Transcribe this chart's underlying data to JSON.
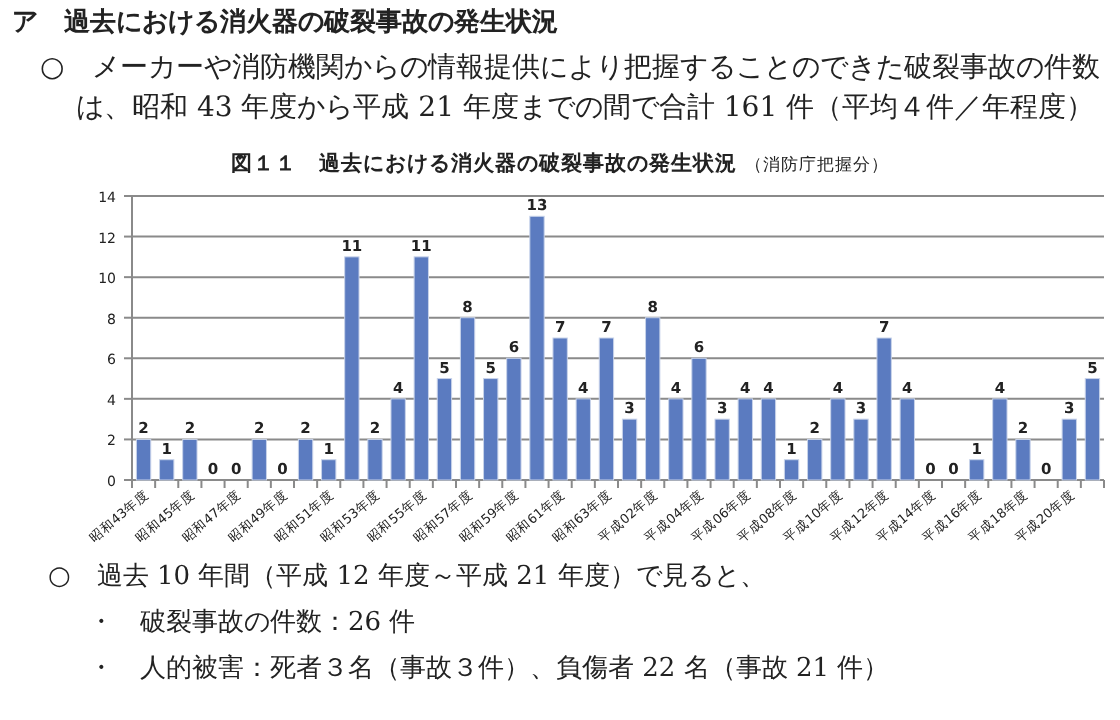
{
  "chart_data": {
    "type": "bar",
    "title": "図１１　過去における消火器の破裂事故の発生状況",
    "subtitle": "（消防庁把握分）",
    "annotations": [
      "ア　過去における消火器の破裂事故の発生状況",
      "○　メーカーや消防機関からの情報提供により把握することのできた破裂事故の件数は、昭和 43 年度から平成 21 年度までの間で合計 161 件（平均４件／年程度）",
      "○　過去 10 年間（平成 12 年度～平成 21 年度）で見ると、",
      "・　破裂事故の件数：26 件",
      "・　人的被害：死者３名（事故３件）、負傷者 22 名（事故 21 件）"
    ],
    "categories": [
      "昭和43年度",
      null,
      "昭和45年度",
      null,
      "昭和47年度",
      null,
      "昭和49年度",
      null,
      "昭和51年度",
      null,
      "昭和53年度",
      null,
      "昭和55年度",
      null,
      "昭和57年度",
      null,
      "昭和59年度",
      null,
      "昭和61年度",
      null,
      "昭和63年度",
      null,
      "平成02年度",
      null,
      "平成04年度",
      null,
      "平成06年度",
      null,
      "平成08年度",
      null,
      "平成10年度",
      null,
      "平成12年度",
      null,
      "平成14年度",
      null,
      "平成16年度",
      null,
      "平成18年度",
      null,
      "平成20年度",
      null
    ],
    "values": [
      2,
      1,
      2,
      0,
      0,
      2,
      0,
      2,
      1,
      11,
      2,
      4,
      11,
      5,
      8,
      5,
      6,
      13,
      7,
      4,
      7,
      3,
      8,
      4,
      6,
      3,
      4,
      4,
      1,
      2,
      4,
      3,
      7,
      4,
      0,
      0,
      1,
      4,
      2,
      0,
      3,
      5
    ],
    "color": "#5b7bc0",
    "ylim": [
      0,
      14
    ],
    "yticks": [
      0,
      2,
      4,
      6,
      8,
      10,
      12,
      14
    ],
    "grid": "y",
    "data_labels": true
  }
}
